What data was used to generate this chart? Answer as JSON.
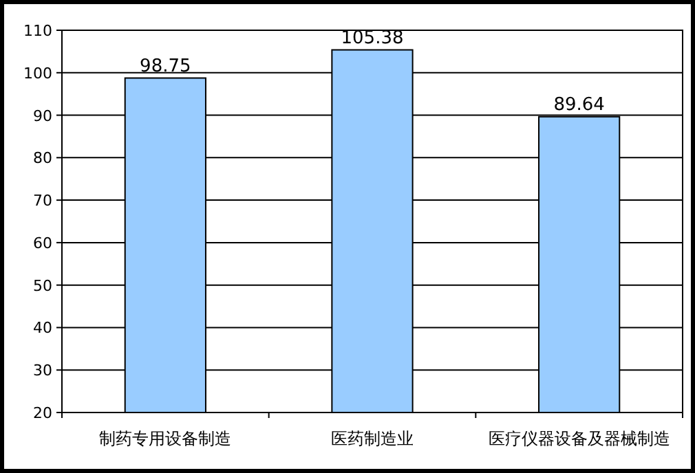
{
  "chart_data": {
    "type": "bar",
    "categories": [
      "制药专用设备制造",
      "医药制造业",
      "医疗仪器设备及器械制造"
    ],
    "values": [
      98.75,
      105.38,
      89.64
    ],
    "color": "#99ccff",
    "ylim": [
      20,
      110
    ],
    "yticks": [
      20,
      30,
      40,
      50,
      60,
      70,
      80,
      90,
      100,
      110
    ],
    "grid": "y",
    "data_labels": true
  }
}
